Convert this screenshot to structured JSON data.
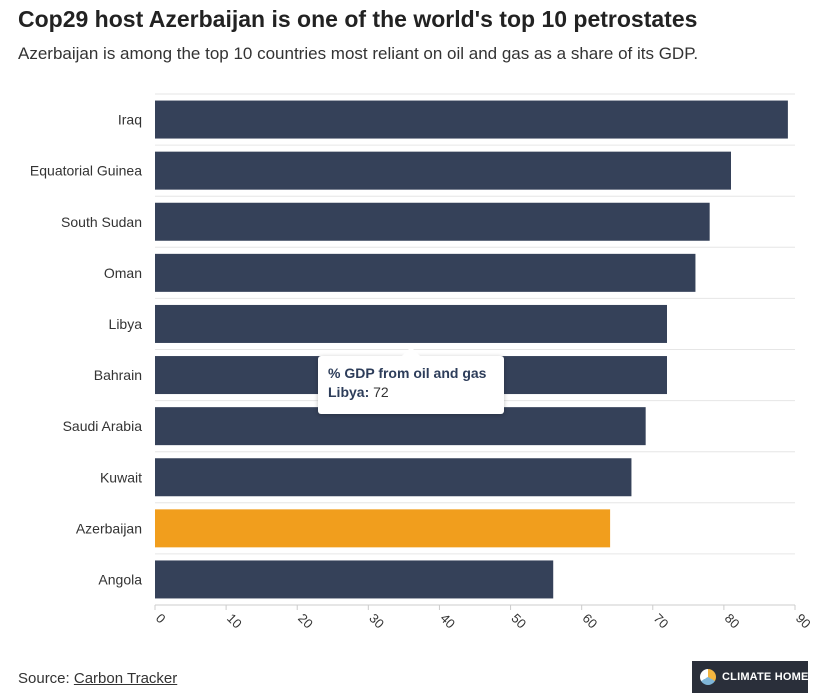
{
  "chart_data": {
    "type": "bar",
    "orientation": "horizontal",
    "title": "Cop29 host Azerbaijan is one of the world's top 10 petrostates",
    "subtitle": "Azerbaijan is among the top 10 countries most reliant on oil and gas as a share of its GDP.",
    "categories": [
      "Iraq",
      "Equatorial Guinea",
      "South Sudan",
      "Oman",
      "Libya",
      "Bahrain",
      "Saudi Arabia",
      "Kuwait",
      "Azerbaijan",
      "Angola"
    ],
    "series": [
      {
        "name": "% GDP from oil and gas",
        "values": [
          89,
          81,
          78,
          76,
          72,
          72,
          69,
          67,
          64,
          56
        ]
      }
    ],
    "highlight": "Azerbaijan",
    "colors": {
      "bar": "#354159",
      "highlight": "#f19e1d",
      "grid": "#e6e6e6"
    },
    "xlim": [
      0,
      90
    ],
    "xticks": [
      0,
      10,
      20,
      30,
      40,
      50,
      60,
      70,
      80,
      90
    ],
    "xlabel": "",
    "ylabel": "",
    "grid": true,
    "legend": "none"
  },
  "tooltip": {
    "title": "% GDP from oil and gas",
    "country": "Libya:",
    "value": "72"
  },
  "source": {
    "prefix": "Source:",
    "link_text": "Carbon Tracker"
  },
  "logo": {
    "text": "CLIMATE HOME"
  }
}
